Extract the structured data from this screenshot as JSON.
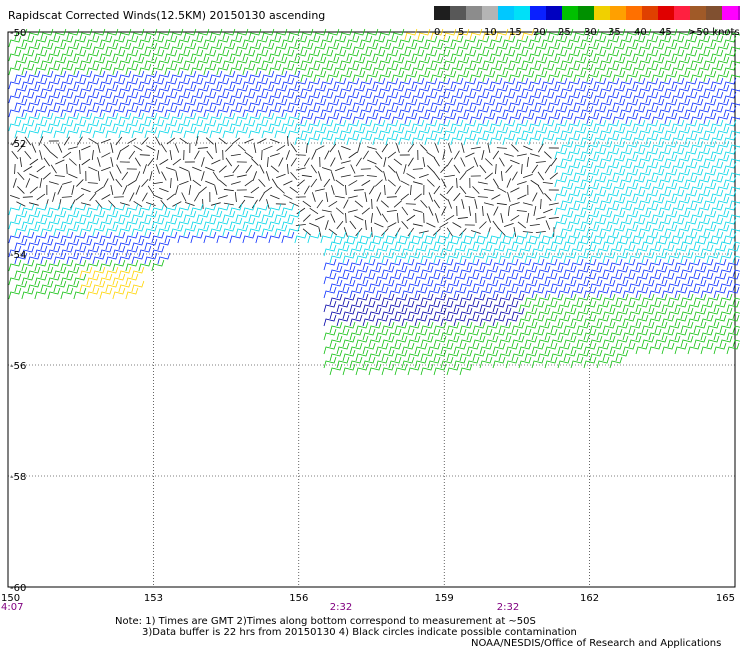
{
  "title": "Rapidscat Corrected Winds(12.5KM) 20150130 ascending",
  "colorbar": {
    "labels": [
      "0",
      "5",
      "10",
      "15",
      "20",
      "25",
      "30",
      "35",
      "40",
      "45",
      ">50 knots"
    ],
    "colors": [
      "#1e1e1e",
      "#585858",
      "#8c8c8c",
      "#b4b4b4",
      "#00c8ff",
      "#00e0f8",
      "#0a20ff",
      "#0000c0",
      "#00c000",
      "#009000",
      "#f0d000",
      "#ffa000",
      "#ff7000",
      "#e04000",
      "#e00000",
      "#ff2040",
      "#a05a28",
      "#805030",
      "#ff00ff",
      "#c000d0",
      "#7000b0"
    ]
  },
  "map": {
    "lat_labels": [
      "-50",
      "-52",
      "-54",
      "-56",
      "-58",
      "-60"
    ],
    "lon_labels": [
      "150",
      "153",
      "156",
      "159",
      "162",
      "165"
    ],
    "times": [
      "4:07",
      "2:32",
      "2:32"
    ],
    "time_color": "#800080",
    "colors": {
      "calm": "#1a1a1a",
      "cyan": "#00d6e8",
      "blue": "#0a2eff",
      "dkblue": "#0000a8",
      "green": "#10c010",
      "yellow": "#ffd400"
    }
  },
  "notes": {
    "line1": "Note: 1) Times are GMT 2)Times along bottom correspond to measurement at ~50S",
    "line2": "3)Data buffer is 22 hrs from 20150130 4) Black circles indicate possible contamination"
  },
  "credit": "NOAA/NESDIS/Office of Research and Applications"
}
